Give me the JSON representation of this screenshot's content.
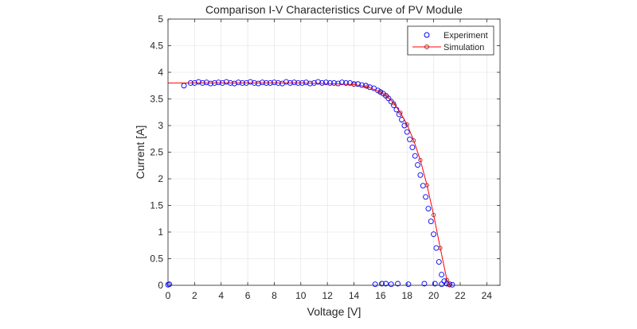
{
  "chart_data": {
    "type": "scatter",
    "title": "Comparison I-V Characteristics Curve of PV Module",
    "xlabel": "Voltage [V]",
    "ylabel": "Current [A]",
    "xlim": [
      0,
      25
    ],
    "ylim": [
      0,
      5
    ],
    "xticks": [
      0,
      2,
      4,
      6,
      8,
      10,
      12,
      14,
      16,
      18,
      20,
      22,
      24
    ],
    "yticks": [
      0,
      0.5,
      1,
      1.5,
      2,
      2.5,
      3,
      3.5,
      4,
      4.5,
      5
    ],
    "xtick_labels": [
      "0",
      "2",
      "4",
      "6",
      "8",
      "10",
      "12",
      "14",
      "16",
      "18",
      "20",
      "22",
      "24"
    ],
    "ytick_labels": [
      "0",
      "0.5",
      "1",
      "1.5",
      "2",
      "2.5",
      "3",
      "3.5",
      "4",
      "4.5",
      "5"
    ],
    "grid": true,
    "legend_position": "top-right",
    "colors": {
      "experiment": "#0000ff",
      "simulation": "#ff0000",
      "simulation_marker": "#a52a2a"
    },
    "series": [
      {
        "name": "Experiment",
        "marker": "circle-open",
        "x": [
          0,
          0.1,
          1.2,
          1.7,
          2,
          2.3,
          2.6,
          2.9,
          3.2,
          3.5,
          3.8,
          4.1,
          4.4,
          4.7,
          5,
          5.3,
          5.6,
          5.9,
          6.2,
          6.5,
          6.8,
          7.1,
          7.4,
          7.7,
          8,
          8.3,
          8.6,
          8.9,
          9.2,
          9.5,
          9.8,
          10.1,
          10.4,
          10.7,
          11,
          11.3,
          11.6,
          11.9,
          12.2,
          12.5,
          12.8,
          13.1,
          13.4,
          13.7,
          14,
          14.3,
          14.6,
          14.9,
          15.2,
          15.5,
          15.8,
          16,
          16.2,
          16.4,
          16.6,
          16.8,
          17,
          17.2,
          17.4,
          17.6,
          17.8,
          18,
          18.2,
          18.4,
          18.6,
          18.8,
          19,
          19.2,
          19.4,
          19.6,
          19.8,
          20,
          20.2,
          20.4,
          20.6,
          20.8,
          21,
          21.2,
          21.4,
          15.6,
          16.1,
          16.4,
          16.8,
          17.3,
          18.1,
          19.3,
          20.1,
          20.6
        ],
        "y": [
          0.01,
          0.02,
          3.75,
          3.8,
          3.8,
          3.82,
          3.8,
          3.81,
          3.79,
          3.8,
          3.81,
          3.8,
          3.82,
          3.8,
          3.79,
          3.81,
          3.8,
          3.8,
          3.82,
          3.8,
          3.79,
          3.81,
          3.8,
          3.8,
          3.81,
          3.8,
          3.79,
          3.82,
          3.8,
          3.81,
          3.8,
          3.8,
          3.81,
          3.79,
          3.8,
          3.82,
          3.8,
          3.81,
          3.8,
          3.8,
          3.79,
          3.81,
          3.8,
          3.8,
          3.78,
          3.78,
          3.76,
          3.75,
          3.72,
          3.7,
          3.66,
          3.63,
          3.6,
          3.56,
          3.51,
          3.45,
          3.38,
          3.3,
          3.21,
          3.11,
          3.0,
          2.88,
          2.74,
          2.59,
          2.43,
          2.26,
          2.07,
          1.87,
          1.66,
          1.44,
          1.2,
          0.96,
          0.7,
          0.44,
          0.2,
          0.08,
          0.03,
          0.02,
          0.01,
          0.02,
          0.03,
          0.03,
          0.02,
          0.03,
          0.02,
          0.03,
          0.03,
          0.02
        ]
      },
      {
        "name": "Simulation",
        "marker": "circle-line",
        "x": [
          0,
          2,
          4,
          6,
          8,
          10,
          12,
          14,
          15,
          16,
          16.5,
          17,
          17.5,
          18,
          18.5,
          19,
          19.5,
          20,
          20.5,
          21,
          21.2
        ],
        "y": [
          3.8,
          3.8,
          3.8,
          3.8,
          3.8,
          3.8,
          3.79,
          3.77,
          3.73,
          3.63,
          3.55,
          3.42,
          3.24,
          3.02,
          2.72,
          2.35,
          1.88,
          1.32,
          0.7,
          0.1,
          0
        ]
      }
    ]
  }
}
